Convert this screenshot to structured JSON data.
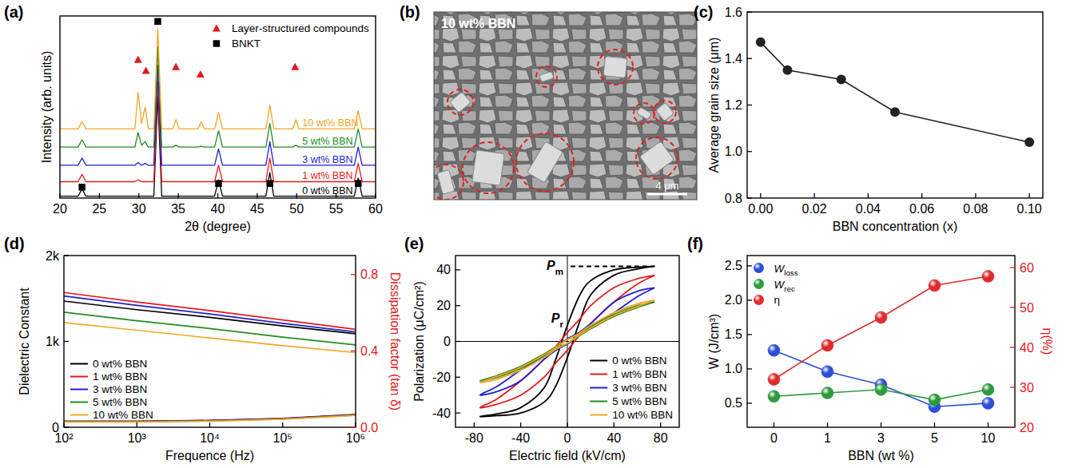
{
  "chart_data": [
    {
      "panel_label": "(a)",
      "type": "line",
      "x_label": "2θ (degree)",
      "y_label": "Intensity (arb. units)",
      "xlim": [
        20,
        60
      ],
      "xticks": [
        20,
        25,
        30,
        35,
        40,
        45,
        50,
        55,
        60
      ],
      "ylim": [
        0,
        100
      ],
      "tick_labels": "x",
      "legend": "top-right",
      "x": [
        20,
        22.3,
        22.8,
        23.3,
        29.5,
        29.9,
        30.35,
        30.8,
        31.2,
        31.9,
        32.4,
        32.9,
        34.3,
        34.7,
        35.1,
        37.5,
        37.9,
        38.3,
        39.6,
        40.1,
        40.6,
        46.1,
        46.6,
        47.1,
        49.5,
        49.9,
        50.3,
        57.3,
        57.8,
        58.3,
        60
      ],
      "series": [
        {
          "name": "0 wt% BBN",
          "color": "#000000",
          "values": [
            1,
            1,
            5,
            1,
            1,
            1,
            1,
            1,
            1,
            1,
            56,
            1,
            1,
            1,
            1,
            1,
            1,
            1,
            1,
            10,
            1,
            1,
            14,
            1,
            1,
            1,
            1,
            1,
            11,
            1,
            1
          ]
        },
        {
          "name": "1 wt% BBN",
          "color": "#e41a1c",
          "values": [
            9,
            9,
            13,
            9,
            9,
            10,
            9,
            9,
            9,
            9,
            64,
            9,
            9,
            9,
            9,
            9,
            9,
            9,
            9,
            18,
            9,
            9,
            22,
            9,
            9,
            9,
            9,
            9,
            19,
            9,
            9
          ]
        },
        {
          "name": "3 wt% BBN",
          "color": "#1f1fd1",
          "values": [
            18,
            18,
            22,
            18,
            18,
            19.5,
            18,
            19,
            18,
            18,
            73,
            18,
            18,
            18,
            18,
            18,
            18,
            18,
            18,
            27,
            18,
            18,
            31,
            18,
            18,
            18,
            18,
            18,
            28,
            18,
            18
          ]
        },
        {
          "name": "5 wt% BBN",
          "color": "#228b22",
          "values": [
            28,
            28,
            32,
            28,
            28,
            36,
            29,
            31,
            28,
            28,
            83,
            28,
            28,
            29,
            28,
            28,
            28.5,
            28,
            28,
            37,
            28,
            28,
            41,
            28,
            28,
            29,
            28,
            28,
            38,
            28,
            28
          ]
        },
        {
          "name": "10 wt% BBN",
          "color": "#f5a623",
          "values": [
            38,
            38,
            42,
            38,
            38,
            58,
            41,
            50,
            38,
            38,
            93,
            38,
            38,
            43,
            38,
            38,
            42,
            38,
            38,
            47,
            38,
            38,
            51,
            38,
            38,
            43,
            38,
            38,
            48,
            38,
            38
          ]
        },
        {
          "name": "Layer-structured compounds",
          "type": "scatter",
          "marker": "triangle",
          "color": "#e41a1c",
          "x": [
            29.9,
            30.9,
            34.7,
            37.8,
            49.8
          ],
          "values": [
            76,
            70,
            72,
            68,
            72
          ]
        },
        {
          "name": "BNKT",
          "type": "scatter",
          "marker": "square",
          "color": "#000000",
          "x": [
            32.4,
            22.8,
            40.1,
            46.6,
            57.8
          ],
          "values": [
            97,
            6,
            8,
            8,
            8
          ]
        }
      ]
    },
    {
      "panel_label": "(b)",
      "type": "image",
      "title": "10 wt% BBN",
      "annotations": [
        "4 μm"
      ]
    },
    {
      "panel_label": "(c)",
      "type": "line",
      "marker": "circle",
      "color": "#222222",
      "x_label": "BBN concentration (x)",
      "y_label": "Average grain size (μm)",
      "x": [
        0,
        0.01,
        0.03,
        0.05,
        0.1
      ],
      "values": [
        1.47,
        1.35,
        1.31,
        1.17,
        1.04
      ],
      "xlim": [
        -0.005,
        0.105
      ],
      "xticks": [
        {
          "value": 0,
          "label": "0.00"
        },
        {
          "value": 0.02,
          "label": "0.02"
        },
        {
          "value": 0.04,
          "label": "0.04"
        },
        {
          "value": 0.06,
          "label": "0.06"
        },
        {
          "value": 0.08,
          "label": "0.08"
        },
        {
          "value": 0.1,
          "label": "0.10"
        }
      ],
      "ylim": [
        0.8,
        1.6
      ],
      "yticks": [
        0.8,
        {
          "value": 1,
          "label": "1.0"
        },
        1.2,
        1.4,
        1.6
      ]
    },
    {
      "panel_label": "(d)",
      "type": "line",
      "log": "x",
      "x_label": "Frequence (Hz)",
      "y_label": "Dielectric Constant",
      "y2_label": "Dissipation factor (tan δ)",
      "xlim": [
        100,
        1000000
      ],
      "xticks": [
        {
          "value": 100,
          "label": "10²"
        },
        {
          "value": 1000,
          "label": "10³"
        },
        {
          "value": 10000,
          "label": "10⁴"
        },
        {
          "value": 100000,
          "label": "10⁵"
        },
        {
          "value": 1000000,
          "label": "10⁶"
        }
      ],
      "ylim": [
        0,
        2000
      ],
      "yticks": [
        0,
        {
          "value": 1000,
          "label": "1k"
        },
        {
          "value": 2000,
          "label": "2k"
        }
      ],
      "y2lim": [
        0,
        0.9
      ],
      "y2ticks": [
        {
          "value": 0,
          "label": "0.0"
        },
        0.4,
        0.8
      ],
      "legend": "bottom-left",
      "x": [
        100,
        1000,
        10000,
        100000,
        1000000
      ],
      "series": [
        {
          "name": "0 wt% BBN",
          "color": "#000000",
          "values": [
            1470,
            1370,
            1280,
            1180,
            1090
          ]
        },
        {
          "name": "1 wt% BBN",
          "color": "#e41a1c",
          "values": [
            1570,
            1460,
            1360,
            1250,
            1140
          ]
        },
        {
          "name": "3 wt% BBN",
          "color": "#1f1fd1",
          "values": [
            1530,
            1420,
            1320,
            1210,
            1110
          ]
        },
        {
          "name": "5 wt% BBN",
          "color": "#228b22",
          "values": [
            1340,
            1240,
            1150,
            1050,
            960
          ]
        },
        {
          "name": "10 wt% BBN",
          "color": "#f5a623",
          "values": [
            1220,
            1130,
            1040,
            950,
            870
          ]
        },
        {
          "name": "0 wt% BBN",
          "color": "#000000",
          "axis": "y2",
          "values": [
            0.03,
            0.03,
            0.035,
            0.045,
            0.065
          ]
        },
        {
          "name": "1 wt% BBN",
          "color": "#e41a1c",
          "axis": "y2",
          "values": [
            0.032,
            0.032,
            0.036,
            0.047,
            0.068
          ]
        },
        {
          "name": "3 wt% BBN",
          "color": "#1f1fd1",
          "axis": "y2",
          "values": [
            0.031,
            0.031,
            0.035,
            0.046,
            0.066
          ]
        },
        {
          "name": "5 wt% BBN",
          "color": "#228b22",
          "axis": "y2",
          "values": [
            0.029,
            0.029,
            0.033,
            0.043,
            0.063
          ]
        },
        {
          "name": "10 wt% BBN",
          "color": "#f5a623",
          "axis": "y2",
          "values": [
            0.028,
            0.028,
            0.032,
            0.042,
            0.062
          ]
        }
      ]
    },
    {
      "panel_label": "(e)",
      "type": "line",
      "x_label": "Electric field (kV/cm)",
      "y_label": "Polarization (μC/cm²)",
      "xlim": [
        -96,
        96
      ],
      "xticks": [
        -80,
        -40,
        0,
        40,
        80
      ],
      "ylim": [
        -48,
        48
      ],
      "yticks": [
        -40,
        -20,
        0,
        20,
        40
      ],
      "legend": "bottom-right",
      "annotations": [
        "Pm",
        "Pr"
      ],
      "x": [
        75,
        60,
        40,
        20,
        10,
        0,
        -10,
        -20,
        -40,
        -60,
        -75,
        -60,
        -40,
        -20,
        -10,
        0,
        10,
        20,
        40,
        60,
        75
      ],
      "series": [
        {
          "name": "0 wt% BBN",
          "color": "#000000",
          "values": [
            42,
            41.5,
            40,
            34,
            25,
            9,
            -10,
            -26,
            -37,
            -40.5,
            -42,
            -41.5,
            -40,
            -34,
            -25,
            -9,
            10,
            26,
            37,
            40.5,
            42
          ]
        },
        {
          "name": "1 wt% BBN",
          "color": "#e41a1c",
          "values": [
            37,
            35,
            30,
            20,
            12,
            5,
            -3,
            -10,
            -22,
            -32,
            -37,
            -35,
            -30,
            -20,
            -12,
            -5,
            3,
            10,
            22,
            32,
            37
          ]
        },
        {
          "name": "3 wt% BBN",
          "color": "#1f1fd1",
          "values": [
            30,
            28,
            22,
            10,
            5,
            1.5,
            -3.5,
            -8,
            -16,
            -25,
            -30,
            -28,
            -22,
            -10,
            -5,
            -1.5,
            3.5,
            8,
            16,
            25,
            30
          ]
        },
        {
          "name": "5 wt% BBN",
          "color": "#228b22",
          "values": [
            22,
            20,
            15,
            8,
            4,
            1,
            -3,
            -7,
            -14,
            -19,
            -22,
            -20,
            -15,
            -8,
            -4,
            -1,
            3,
            7,
            14,
            19,
            22
          ]
        },
        {
          "name": "10 wt% BBN",
          "color": "#f5a623",
          "values": [
            23,
            21,
            16,
            9,
            4.5,
            1,
            -3.5,
            -7.5,
            -14.5,
            -19.5,
            -23,
            -21,
            -16,
            -9,
            -4.5,
            -1,
            3.5,
            7.5,
            14.5,
            19.5,
            23
          ]
        }
      ]
    },
    {
      "panel_label": "(f)",
      "type": "line",
      "marker": "circle",
      "x_label": "BBN (wt %)",
      "y_label": "W (J/cm³)",
      "y2_label": "η(%)",
      "categories": [
        "0",
        "1",
        "3",
        "5",
        "10"
      ],
      "ylim": [
        0.15,
        2.65
      ],
      "yticks": [
        0.5,
        {
          "value": 1,
          "label": "1.0"
        },
        1.5,
        {
          "value": 2,
          "label": "2.0"
        },
        2.5
      ],
      "y2lim": [
        20,
        63
      ],
      "y2ticks": [
        20,
        30,
        40,
        50,
        60
      ],
      "legend": "top-left",
      "series": [
        {
          "name": "Wloss",
          "color": "#2b4fd8",
          "values": [
            1.27,
            0.96,
            0.77,
            0.45,
            0.5
          ]
        },
        {
          "name": "Wrec",
          "color": "#2e9a3c",
          "values": [
            0.6,
            0.65,
            0.7,
            0.55,
            0.7
          ]
        },
        {
          "name": "η",
          "color": "#e02b2b",
          "axis": "y2",
          "values": [
            32,
            40.5,
            47.5,
            55.5,
            57.8
          ]
        }
      ]
    }
  ]
}
